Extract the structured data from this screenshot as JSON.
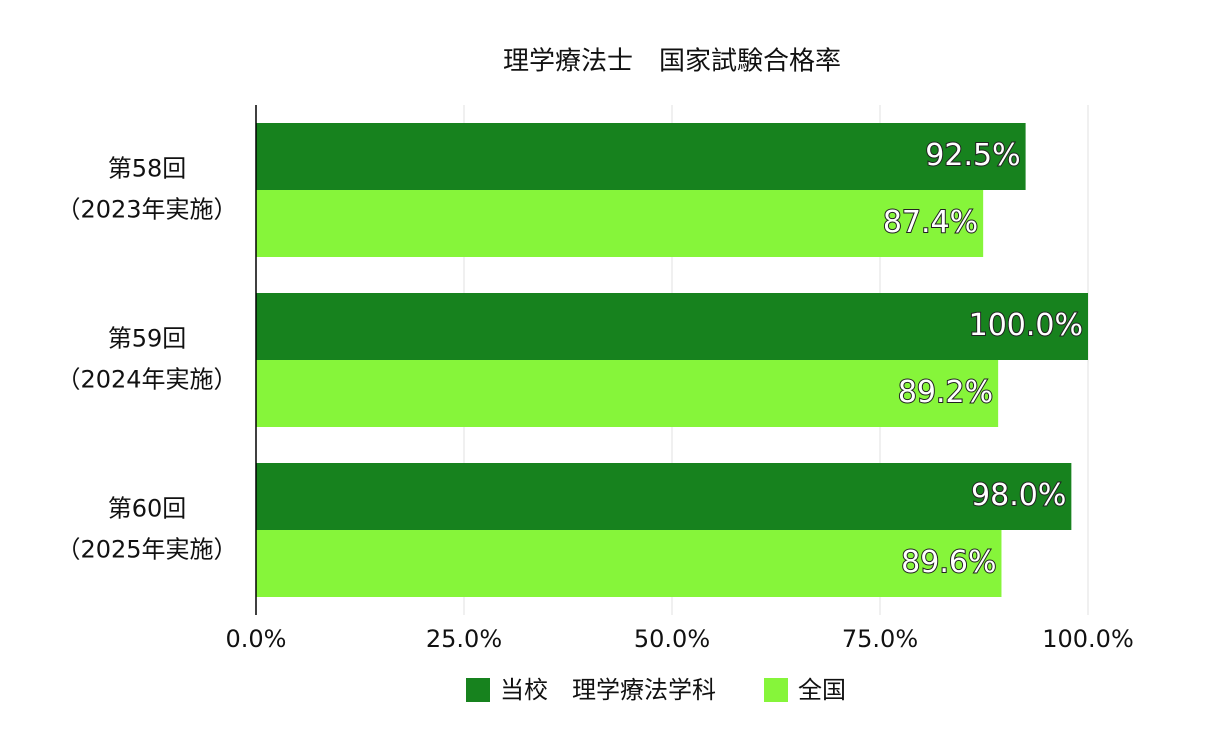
{
  "chart_data": {
    "type": "bar",
    "orientation": "horizontal",
    "title": "理学療法士　国家試験合格率",
    "categories": [
      [
        "第58回",
        "（2023年実施）"
      ],
      [
        "第59回",
        "（2024年実施）"
      ],
      [
        "第60回",
        "（2025年実施）"
      ]
    ],
    "series": [
      {
        "name": "当校　理学療法学科",
        "color": "#17821e",
        "values": [
          92.5,
          100.0,
          98.0
        ],
        "value_labels": [
          "92.5%",
          "100.0%",
          "98.0%"
        ]
      },
      {
        "name": "全国",
        "color": "#86f53a",
        "values": [
          87.4,
          89.2,
          89.6
        ],
        "value_labels": [
          "87.4%",
          "89.2%",
          "89.6%"
        ]
      }
    ],
    "xlim": [
      0,
      100
    ],
    "xticks": [
      {
        "value": 0,
        "label": "0.0%"
      },
      {
        "value": 25,
        "label": "25.0%"
      },
      {
        "value": 50,
        "label": "50.0%"
      },
      {
        "value": 75,
        "label": "75.0%"
      },
      {
        "value": 100,
        "label": "100.0%"
      }
    ],
    "grid": true,
    "legend": "bottom"
  }
}
